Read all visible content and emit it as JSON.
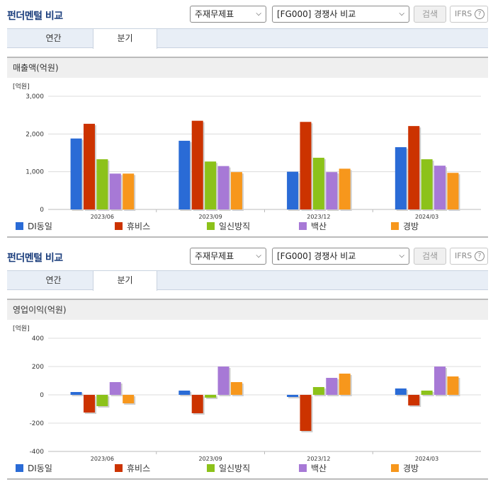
{
  "panels": [
    {
      "title": "펀더멘털 비교",
      "select1": "주재무제표",
      "select2": "[FG000] 경쟁사 비교",
      "search_label": "검색",
      "ifrs_label": "IFRS",
      "help_glyph": "?",
      "tabs": [
        "연간",
        "분기"
      ],
      "active_tab": 1,
      "section_title": "매출액(억원)"
    },
    {
      "title": "펀더멘털 비교",
      "select1": "주재무제표",
      "select2": "[FG000] 경쟁사 비교",
      "search_label": "검색",
      "ifrs_label": "IFRS",
      "help_glyph": "?",
      "tabs": [
        "연간",
        "분기"
      ],
      "active_tab": 1,
      "section_title": "영업이익(억원)"
    }
  ],
  "chart_data": [
    {
      "type": "bar",
      "unit_label": "[억원]",
      "categories": [
        "2023/06",
        "2023/09",
        "2023/12",
        "2024/03"
      ],
      "ylim": [
        0,
        3000
      ],
      "yticks": [
        0,
        1000,
        2000,
        3000
      ],
      "ytick_labels": [
        "0",
        "1,000",
        "2,000",
        "3,000"
      ],
      "grid": true,
      "legend_position": "bottom",
      "series": [
        {
          "name": "DI동일",
          "color": "#2a6bd6",
          "values": [
            1880,
            1820,
            1000,
            1650
          ]
        },
        {
          "name": "휴비스",
          "color": "#cc3300",
          "values": [
            2270,
            2350,
            2320,
            2210
          ]
        },
        {
          "name": "일신방직",
          "color": "#8cc21a",
          "values": [
            1330,
            1270,
            1370,
            1330
          ]
        },
        {
          "name": "백산",
          "color": "#a779d6",
          "values": [
            950,
            1150,
            990,
            1160
          ]
        },
        {
          "name": "경방",
          "color": "#f7971c",
          "values": [
            950,
            990,
            1080,
            970
          ]
        }
      ]
    },
    {
      "type": "bar",
      "unit_label": "[억원]",
      "categories": [
        "2023/06",
        "2023/09",
        "2023/12",
        "2024/03"
      ],
      "ylim": [
        -400,
        400
      ],
      "yticks": [
        -400,
        -200,
        0,
        200,
        400
      ],
      "ytick_labels": [
        "-400",
        "-200",
        "0",
        "200",
        "400"
      ],
      "grid": true,
      "legend_position": "bottom",
      "series": [
        {
          "name": "DI동일",
          "color": "#2a6bd6",
          "values": [
            20,
            30,
            -15,
            45
          ]
        },
        {
          "name": "휴비스",
          "color": "#cc3300",
          "values": [
            -125,
            -130,
            -255,
            -75
          ]
        },
        {
          "name": "일신방직",
          "color": "#8cc21a",
          "values": [
            -80,
            -20,
            55,
            30
          ]
        },
        {
          "name": "백산",
          "color": "#a779d6",
          "values": [
            90,
            200,
            120,
            200
          ]
        },
        {
          "name": "경방",
          "color": "#f7971c",
          "values": [
            -60,
            90,
            150,
            130
          ]
        }
      ]
    }
  ]
}
